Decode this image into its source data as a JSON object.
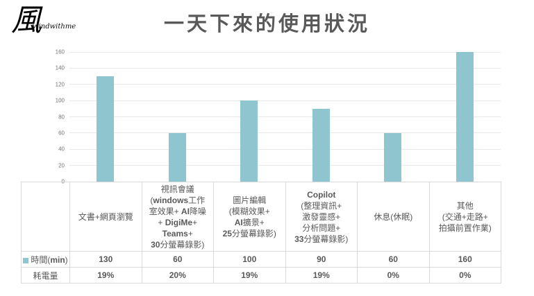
{
  "logo": {
    "glyph": "風",
    "brand": "windwithme"
  },
  "title": "一天下來的使用狀況",
  "colors": {
    "bar": "#8FC5CE",
    "gridline": "#E8E8E8",
    "table_border": "#D9D9D9",
    "text": "#595959",
    "axis_text": "#737373"
  },
  "chart_data": {
    "type": "bar",
    "title": "一天下來的使用狀況",
    "categories": [
      "文書+網頁瀏覽",
      "視訊會議(windows工作室效果+ AI降噪+ DigiMe+ Teams+ 30分螢幕錄影)",
      "圖片編輯(模糊效果+ AI擴景+ 25分螢幕錄影)",
      "Copilot(整理資訊+ 激發靈感+ 分析問題+ 33分螢幕錄影)",
      "休息(休眠)",
      "其他(交通+走路+ 拍攝前置作業)"
    ],
    "series": [
      {
        "name": "時間(min)",
        "values": [
          130,
          60,
          100,
          90,
          60,
          160
        ],
        "plotted_as_bars": true
      },
      {
        "name": "耗電量",
        "values": [
          "19%",
          "20%",
          "19%",
          "19%",
          "0%",
          "0%"
        ],
        "plotted_as_bars": false
      }
    ],
    "ylim": [
      0,
      160
    ],
    "ytick_step": 20,
    "grid": "horizontal-only",
    "legend": "shown-in-data-table-row-label"
  },
  "table": {
    "category_lines": [
      [
        "文書+網頁瀏覽"
      ],
      [
        "視訊會議",
        "(windows工作",
        "室效果+ AI降噪",
        "+ DigiMe+",
        "Teams+",
        "30分螢幕錄影)"
      ],
      [
        "圖片編輯",
        "(模糊效果+",
        "AI擴景+",
        "25分螢幕錄影)"
      ],
      [
        "Copilot",
        "(整理資訊+",
        "激發靈感+",
        "分析問題+",
        "33分螢幕錄影)"
      ],
      [
        "休息(休眠)"
      ],
      [
        "其他",
        "(交通+走路+",
        "拍攝前置作業)"
      ]
    ],
    "rows": [
      {
        "label": "時間(min)",
        "values": [
          "130",
          "60",
          "100",
          "90",
          "60",
          "160"
        ]
      },
      {
        "label": "耗電量",
        "values": [
          "19%",
          "20%",
          "19%",
          "19%",
          "0%",
          "0%"
        ]
      }
    ]
  }
}
